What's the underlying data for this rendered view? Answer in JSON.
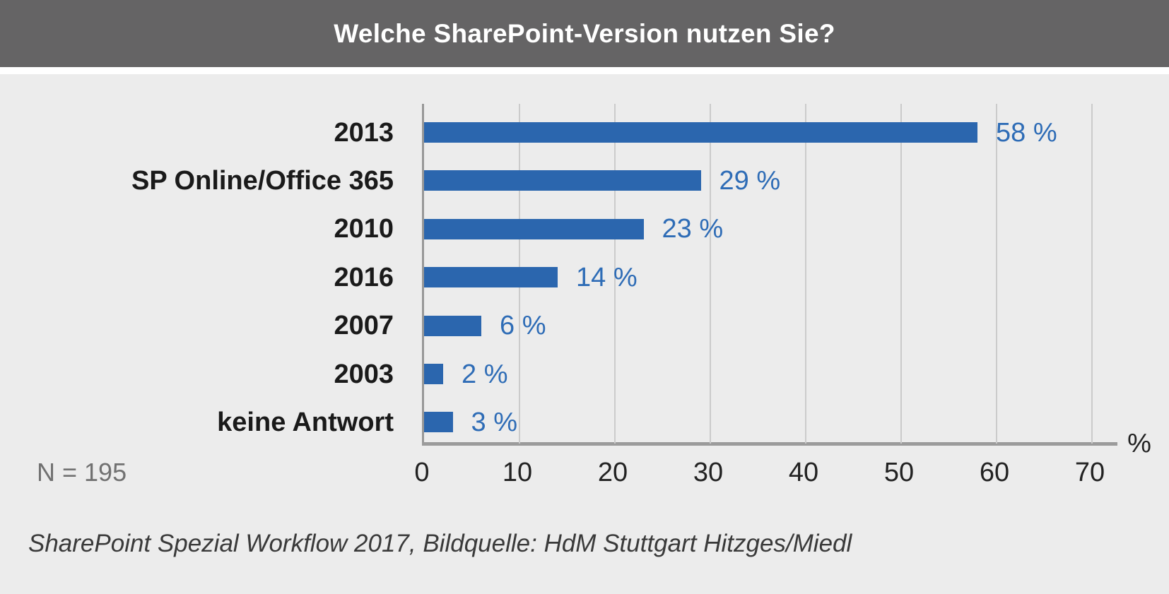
{
  "header": {
    "title": "Welche SharePoint-Version nutzen Sie?"
  },
  "chart_data": {
    "type": "bar",
    "orientation": "horizontal",
    "title": "Welche SharePoint-Version nutzen Sie?",
    "categories": [
      "2013",
      "SP Online/Office 365",
      "2010",
      "2016",
      "2007",
      "2003",
      "keine Antwort"
    ],
    "values": [
      58,
      29,
      23,
      14,
      6,
      2,
      3
    ],
    "value_labels": [
      "58 %",
      "29 %",
      "23 %",
      "14 %",
      "6 %",
      "2 %",
      "3 %"
    ],
    "xticks": [
      "0",
      "10",
      "20",
      "30",
      "40",
      "50",
      "60",
      "70"
    ],
    "xlim": [
      0,
      70
    ],
    "x_unit_label": "%",
    "grid": "vertical",
    "legend": "none",
    "bar_color": "#2b66ae",
    "value_label_color": "#2e6cb6"
  },
  "footer": {
    "sample_size": "N = 195",
    "source": "SharePoint Spezial Workflow 2017, Bildquelle: HdM Stuttgart Hitzges/Miedl"
  },
  "colors": {
    "header_background": "#656465",
    "header_text": "#ffffff",
    "page_background": "#ececec",
    "divider_strip": "#ffffff",
    "gridline": "#cbcbcb",
    "axis_line": "#9b9b9b",
    "category_text": "#1a1a1a",
    "tick_text": "#222222",
    "sample_size_text": "#717171",
    "source_text": "#3a3a3a"
  }
}
